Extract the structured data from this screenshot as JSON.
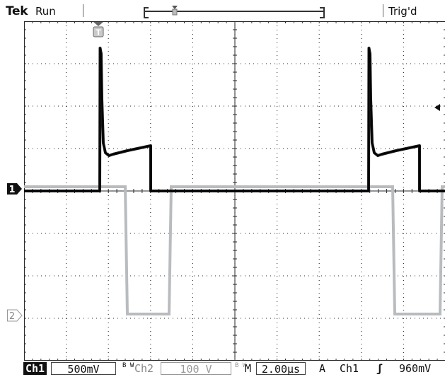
{
  "header": {
    "brand": "Tek",
    "status": "Run",
    "trigger_status": "Trig'd",
    "record_marker_icon": "trigger-position-marker-icon"
  },
  "markers": {
    "trigger_position_label": "T",
    "ch1_label": "1",
    "ch2_label": "2",
    "trigger_level_icon": "left-arrow-icon"
  },
  "readout": {
    "ch1_label": "Ch1",
    "ch1_scale": "500mV",
    "ch1_bw": "B W",
    "ch2_label": "Ch2",
    "ch2_scale": "100 V",
    "ch2_bw": "B W",
    "timebase_label": "M",
    "timebase": "2.00μs",
    "acq_label": "A",
    "trigger_source": "Ch1",
    "trigger_slope_icon": "rising-edge-icon",
    "trigger_slope": "ʃ",
    "trigger_level": "960mV"
  },
  "colors": {
    "ch1_trace": "#151515",
    "ch2_trace": "#b9bcbf",
    "grid": "#2a2a2a",
    "background": "#ffffff"
  },
  "traces": {
    "ch1": {
      "label": "Ch1",
      "x": [
        0,
        134,
        136,
        137,
        139,
        140,
        143,
        145,
        148,
        150,
        173,
        208,
        209,
        211,
        212,
        519,
        521,
        522,
        524,
        525,
        528,
        530,
        534,
        536,
        560,
        589,
        590,
        591,
        596
      ],
      "y": [
        1,
        1,
        38,
        63,
        82,
        95,
        102,
        104,
        105,
        104.5,
        106,
        107,
        90,
        42,
        1,
        1,
        40,
        64,
        83,
        95,
        102,
        104,
        105,
        104.5,
        106,
        107,
        90,
        1,
        1
      ]
    },
    "ch2": {
      "label": "Ch2",
      "x": [
        0,
        143,
        146,
        205,
        208,
        521,
        524,
        588,
        591,
        596
      ],
      "y": [
        4.1,
        4.1,
        1.1,
        1.1,
        4.1,
        4.1,
        1.1,
        1.1,
        4.1,
        4.1
      ]
    }
  }
}
